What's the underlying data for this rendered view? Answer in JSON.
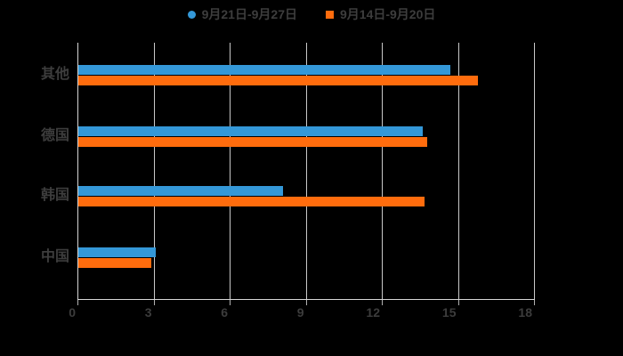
{
  "chart_data": {
    "type": "bar",
    "orientation": "horizontal",
    "title": "",
    "categories": [
      "其他",
      "德国",
      "韩国",
      "中国"
    ],
    "series": [
      {
        "name": "9月21日-9月27日",
        "color": "#3498d8",
        "marker": "circle",
        "values": [
          14.7,
          13.6,
          8.1,
          3.1
        ]
      },
      {
        "name": "9月14日-9月20日",
        "color": "#ff6c0d",
        "marker": "square",
        "values": [
          15.8,
          13.8,
          13.7,
          2.9
        ]
      }
    ],
    "x_axis": {
      "min": 0,
      "max": 18,
      "tick_interval": 3,
      "ticks": [
        0,
        3,
        6,
        9,
        12,
        15,
        18
      ]
    },
    "y_axis": {
      "labels_order_top_to_bottom": [
        "其他",
        "德国",
        "韩国",
        "中国"
      ]
    },
    "legend_position": "top-center",
    "grid": true,
    "colors": {
      "background": "#000000",
      "text": "#3d3d3d",
      "axis_line": "#d6d6d6",
      "gridline": "#c9c9c9",
      "tick_mark": "#b0b0b0"
    }
  }
}
